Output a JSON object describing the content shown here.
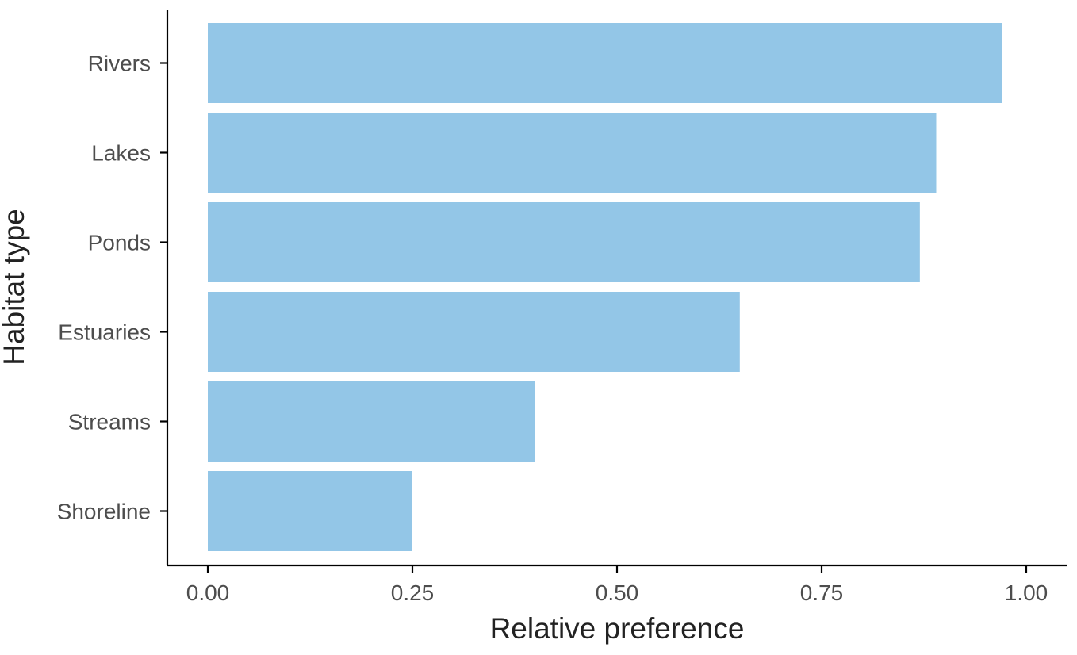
{
  "chart_data": {
    "type": "bar",
    "orientation": "horizontal",
    "categories": [
      "Rivers",
      "Lakes",
      "Ponds",
      "Estuaries",
      "Streams",
      "Shoreline"
    ],
    "values": [
      0.97,
      0.89,
      0.87,
      0.65,
      0.4,
      0.25
    ],
    "xlabel": "Relative preference",
    "ylabel": "Habitat type",
    "xlim": [
      0,
      1
    ],
    "xticks": [
      "0.00",
      "0.25",
      "0.50",
      "0.75",
      "1.00"
    ],
    "xtick_values": [
      0,
      0.25,
      0.5,
      0.75,
      1.0
    ],
    "grid": false,
    "legend": "none",
    "bar_color": "#93c6e7"
  }
}
